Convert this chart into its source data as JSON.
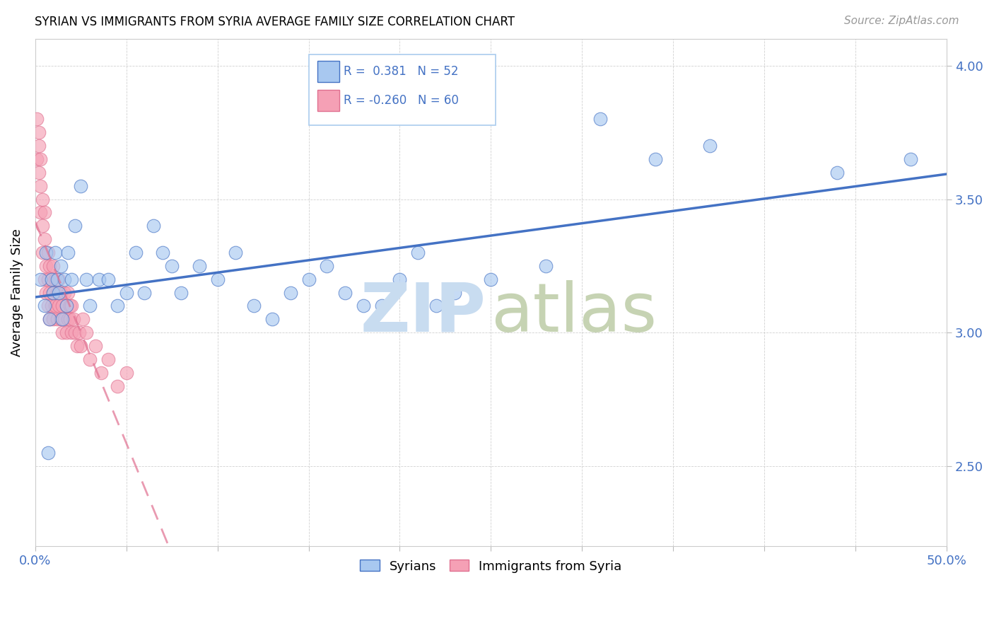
{
  "title": "SYRIAN VS IMMIGRANTS FROM SYRIA AVERAGE FAMILY SIZE CORRELATION CHART",
  "source": "Source: ZipAtlas.com",
  "ylabel": "Average Family Size",
  "xlim": [
    0.0,
    0.5
  ],
  "ylim": [
    2.2,
    4.1
  ],
  "yticks": [
    2.5,
    3.0,
    3.5,
    4.0
  ],
  "xticks": [
    0.0,
    0.05,
    0.1,
    0.15,
    0.2,
    0.25,
    0.3,
    0.35,
    0.4,
    0.45,
    0.5
  ],
  "r_syrians": 0.381,
  "n_syrians": 52,
  "r_immigrants": -0.26,
  "n_immigrants": 60,
  "color_syrians": "#A8C8F0",
  "color_immigrants": "#F5A0B5",
  "line_color_syrians": "#4472C4",
  "line_color_immigrants": "#E07090",
  "syrians_x": [
    0.003,
    0.005,
    0.006,
    0.007,
    0.008,
    0.009,
    0.01,
    0.011,
    0.012,
    0.013,
    0.014,
    0.015,
    0.016,
    0.017,
    0.018,
    0.02,
    0.022,
    0.025,
    0.028,
    0.03,
    0.035,
    0.04,
    0.045,
    0.05,
    0.055,
    0.06,
    0.065,
    0.07,
    0.075,
    0.08,
    0.09,
    0.1,
    0.11,
    0.12,
    0.13,
    0.14,
    0.15,
    0.16,
    0.17,
    0.18,
    0.19,
    0.2,
    0.21,
    0.22,
    0.23,
    0.25,
    0.28,
    0.31,
    0.34,
    0.37,
    0.44,
    0.48
  ],
  "syrians_y": [
    3.2,
    3.1,
    3.3,
    2.55,
    3.05,
    3.2,
    3.15,
    3.3,
    3.2,
    3.15,
    3.25,
    3.05,
    3.2,
    3.1,
    3.3,
    3.2,
    3.4,
    3.55,
    3.2,
    3.1,
    3.2,
    3.2,
    3.1,
    3.15,
    3.3,
    3.15,
    3.4,
    3.3,
    3.25,
    3.15,
    3.25,
    3.2,
    3.3,
    3.1,
    3.05,
    3.15,
    3.2,
    3.25,
    3.15,
    3.1,
    3.1,
    3.2,
    3.3,
    3.1,
    3.15,
    3.2,
    3.25,
    3.8,
    3.65,
    3.7,
    3.6,
    3.65
  ],
  "immigrants_x": [
    0.001,
    0.001,
    0.002,
    0.002,
    0.002,
    0.003,
    0.003,
    0.003,
    0.004,
    0.004,
    0.004,
    0.005,
    0.005,
    0.005,
    0.006,
    0.006,
    0.007,
    0.007,
    0.007,
    0.008,
    0.008,
    0.008,
    0.009,
    0.009,
    0.01,
    0.01,
    0.01,
    0.011,
    0.011,
    0.012,
    0.012,
    0.013,
    0.013,
    0.014,
    0.014,
    0.015,
    0.015,
    0.016,
    0.016,
    0.017,
    0.017,
    0.018,
    0.018,
    0.019,
    0.019,
    0.02,
    0.02,
    0.021,
    0.022,
    0.023,
    0.024,
    0.025,
    0.026,
    0.028,
    0.03,
    0.033,
    0.036,
    0.04,
    0.045,
    0.05
  ],
  "immigrants_y": [
    3.8,
    3.65,
    3.75,
    3.6,
    3.7,
    3.55,
    3.65,
    3.45,
    3.5,
    3.4,
    3.3,
    3.2,
    3.35,
    3.45,
    3.15,
    3.25,
    3.3,
    3.1,
    3.2,
    3.15,
    3.05,
    3.25,
    3.1,
    3.2,
    3.15,
    3.05,
    3.25,
    3.1,
    3.2,
    3.05,
    3.15,
    3.2,
    3.1,
    3.05,
    3.15,
    3.1,
    3.0,
    3.15,
    3.05,
    3.1,
    3.0,
    3.05,
    3.15,
    3.05,
    3.1,
    3.0,
    3.1,
    3.05,
    3.0,
    2.95,
    3.0,
    2.95,
    3.05,
    3.0,
    2.9,
    2.95,
    2.85,
    2.9,
    2.8,
    2.85
  ]
}
